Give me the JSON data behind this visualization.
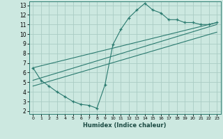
{
  "xlabel": "Humidex (Indice chaleur)",
  "bg_color": "#cce8e0",
  "grid_color": "#aaccC4",
  "line_color": "#2a7a6f",
  "xlim": [
    -0.5,
    23.5
  ],
  "ylim": [
    1.7,
    13.4
  ],
  "xticks": [
    0,
    1,
    2,
    3,
    4,
    5,
    6,
    7,
    8,
    9,
    10,
    11,
    12,
    13,
    14,
    15,
    16,
    17,
    18,
    19,
    20,
    21,
    22,
    23
  ],
  "yticks": [
    2,
    3,
    4,
    5,
    6,
    7,
    8,
    9,
    10,
    11,
    12,
    13
  ],
  "series1_x": [
    0,
    1,
    2,
    3,
    4,
    5,
    6,
    7,
    8,
    9,
    10,
    11,
    12,
    13,
    14,
    15,
    16,
    17,
    18,
    19,
    20,
    21,
    22,
    23
  ],
  "series1_y": [
    6.5,
    5.2,
    4.6,
    4.0,
    3.5,
    3.0,
    2.7,
    2.6,
    2.3,
    4.7,
    8.9,
    10.5,
    11.7,
    12.5,
    13.2,
    12.5,
    12.2,
    11.5,
    11.5,
    11.2,
    11.2,
    11.0,
    11.0,
    11.2
  ],
  "line2_x": [
    0,
    23
  ],
  "line2_y": [
    6.5,
    11.2
  ],
  "line3_x": [
    0,
    23
  ],
  "line3_y": [
    5.2,
    11.0
  ],
  "line4_x": [
    0,
    23
  ],
  "line4_y": [
    4.6,
    10.2
  ]
}
